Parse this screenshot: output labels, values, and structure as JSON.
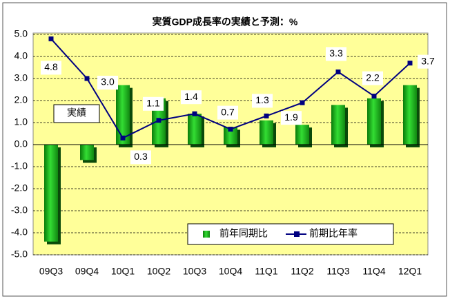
{
  "chart_data": {
    "type": "bar-line",
    "title": "実質GDP成長率の実績と予測：%",
    "categories": [
      "09Q3",
      "09Q4",
      "10Q1",
      "10Q2",
      "10Q3",
      "10Q4",
      "11Q1",
      "11Q2",
      "11Q3",
      "11Q4",
      "12Q1"
    ],
    "series": [
      {
        "name": "前年同期比",
        "type": "bar",
        "color": "#22bb22",
        "values": [
          -4.4,
          -0.7,
          2.7,
          2.1,
          1.4,
          0.8,
          1.1,
          0.9,
          1.8,
          2.1,
          2.7
        ]
      },
      {
        "name": "前期比年率",
        "type": "line",
        "color": "#000080",
        "values": [
          4.8,
          3.0,
          0.3,
          1.1,
          1.4,
          0.7,
          1.3,
          1.9,
          3.3,
          2.2,
          3.7
        ],
        "value_labels": [
          "4.8",
          "3.0",
          "0.3",
          "1.1",
          "1.4",
          "0.7",
          "1.3",
          "1.9",
          "3.3",
          "2.2",
          "3.7"
        ]
      }
    ],
    "annotation": "実績",
    "ylim": [
      -5,
      5
    ],
    "yticks": [
      {
        "value": -5,
        "label": "-5.0"
      },
      {
        "value": -4,
        "label": "-4.0"
      },
      {
        "value": -3,
        "label": "-3.0"
      },
      {
        "value": -2,
        "label": "-2.0"
      },
      {
        "value": -1,
        "label": "-1.0"
      },
      {
        "value": 0,
        "label": "0.0"
      },
      {
        "value": 1,
        "label": "1.0"
      },
      {
        "value": 2,
        "label": "2.0"
      },
      {
        "value": 3,
        "label": "3.0"
      },
      {
        "value": 4,
        "label": "4.0"
      },
      {
        "value": 5,
        "label": "5.0"
      }
    ],
    "grid": true
  }
}
